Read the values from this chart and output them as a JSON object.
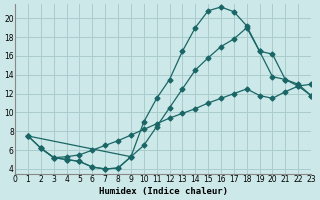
{
  "xlabel": "Humidex (Indice chaleur)",
  "bg_color": "#cce8e8",
  "grid_color": "#aacccc",
  "line_color": "#1a6666",
  "line1_x": [
    1,
    2,
    3,
    4,
    5,
    6,
    7,
    8,
    9,
    10,
    11,
    12,
    13,
    14,
    15,
    16,
    17,
    18,
    19,
    20,
    21,
    22,
    23
  ],
  "line1_y": [
    7.5,
    6.2,
    5.2,
    5.0,
    4.8,
    4.2,
    4.0,
    4.1,
    5.3,
    9.0,
    11.5,
    13.5,
    16.5,
    19.0,
    20.8,
    21.2,
    20.7,
    19.2,
    16.5,
    13.8,
    13.5,
    13.0,
    11.8
  ],
  "line2_x": [
    1,
    9,
    10,
    11,
    12,
    13,
    14,
    15,
    16,
    17,
    18,
    19,
    20,
    21,
    22,
    23
  ],
  "line2_y": [
    7.5,
    5.3,
    6.5,
    8.5,
    10.5,
    12.5,
    14.5,
    15.8,
    17.0,
    17.8,
    19.0,
    16.5,
    16.2,
    13.5,
    12.8,
    11.8
  ],
  "line3_x": [
    1,
    2,
    3,
    4,
    5,
    6,
    7,
    8,
    9,
    10,
    11,
    12,
    13,
    14,
    15,
    16,
    17,
    18,
    19,
    20,
    21,
    22,
    23
  ],
  "line3_y": [
    7.5,
    6.2,
    5.2,
    5.3,
    5.5,
    6.0,
    6.5,
    7.0,
    7.6,
    8.2,
    8.8,
    9.4,
    9.9,
    10.4,
    11.0,
    11.5,
    12.0,
    12.5,
    11.8,
    11.5,
    12.2,
    12.8,
    13.0
  ],
  "line4_x": [
    2,
    3,
    4,
    5,
    6,
    7,
    8,
    9
  ],
  "line4_y": [
    6.2,
    5.2,
    5.0,
    4.8,
    4.2,
    4.0,
    4.1,
    5.3
  ],
  "xlim": [
    0,
    23
  ],
  "ylim": [
    3.5,
    21.5
  ],
  "xticks": [
    0,
    1,
    2,
    3,
    4,
    5,
    6,
    7,
    8,
    9,
    10,
    11,
    12,
    13,
    14,
    15,
    16,
    17,
    18,
    19,
    20,
    21,
    22,
    23
  ],
  "yticks": [
    4,
    6,
    8,
    10,
    12,
    14,
    16,
    18,
    20
  ]
}
